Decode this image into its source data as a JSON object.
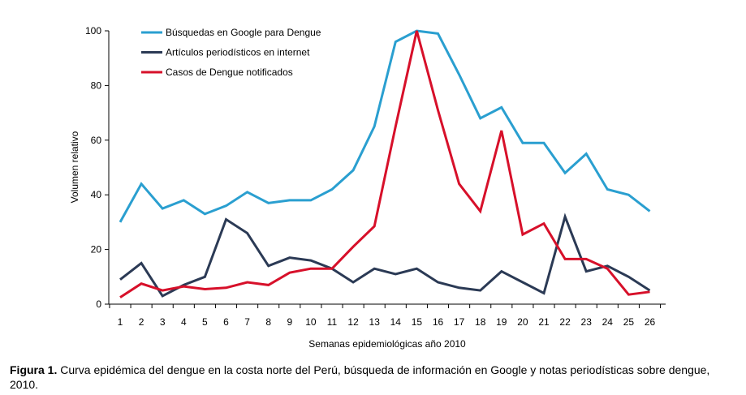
{
  "chart_data": {
    "type": "line",
    "xlabel": "Semanas epidemiológicas año 2010",
    "ylabel": "Volumen relativo",
    "x": [
      1,
      2,
      3,
      4,
      5,
      6,
      7,
      8,
      9,
      10,
      11,
      12,
      13,
      14,
      15,
      16,
      17,
      18,
      19,
      20,
      21,
      22,
      23,
      24,
      25,
      26
    ],
    "ylim": [
      0,
      100
    ],
    "yticks": [
      0,
      20,
      40,
      60,
      80,
      100
    ],
    "grid": false,
    "legend_position": "top-left",
    "series": [
      {
        "name": "Búsquedas en Google para Dengue",
        "color": "#2a9fd0",
        "values": [
          30,
          44,
          35,
          38,
          33,
          36,
          41,
          37,
          38,
          38,
          42,
          49,
          65,
          96,
          100,
          99,
          84,
          68,
          72,
          59,
          59,
          48,
          55,
          42,
          40,
          34
        ]
      },
      {
        "name": "Artículos periodísticos en internet",
        "color": "#2b3a55",
        "values": [
          9,
          15,
          3,
          7,
          10,
          31,
          26,
          14,
          17,
          16,
          13,
          8,
          13,
          11,
          13,
          8,
          6,
          5,
          12,
          8,
          4,
          32,
          12,
          14,
          10,
          5
        ]
      },
      {
        "name": "Casos de Dengue notificados",
        "color": "#d7102a",
        "values": [
          2.5,
          7.5,
          5,
          6.5,
          5.5,
          6,
          8,
          7,
          11.5,
          13,
          13,
          21,
          28.5,
          65,
          100,
          71,
          44,
          34,
          63.5,
          25.5,
          29.5,
          16.5,
          16.5,
          13,
          3.5,
          4.5
        ]
      }
    ]
  },
  "caption": {
    "label": "Figura 1.",
    "text": " Curva epidémica del dengue en la costa norte del Perú, búsqueda de información en Google y notas periodísticas sobre dengue, 2010."
  }
}
